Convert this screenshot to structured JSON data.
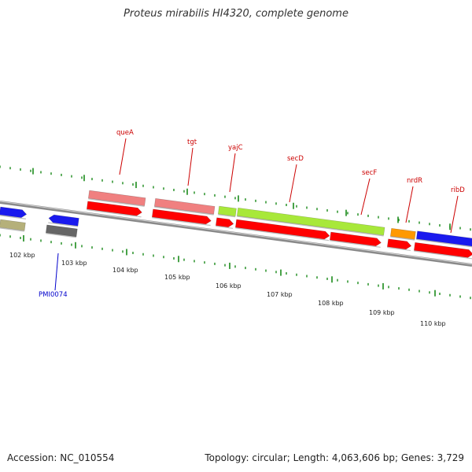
{
  "title": "Proteus mirabilis HI4320, complete genome",
  "footer": {
    "accession": "Accession: NC_010554",
    "info": "Topology: circular; Length: 4,063,606 bp; Genes: 3,729"
  },
  "colors": {
    "backbone": "#8a8a8a",
    "tick": "#1a8a1a",
    "label_red": "#cc0000",
    "label_blue": "#0000cc",
    "cds": "#ff0000",
    "pink": "#f08080",
    "lime": "#a8e83a",
    "orange": "#ff9900",
    "blue": "#1a1aee",
    "khaki": "#b5b07a",
    "gray": "#666666"
  },
  "scale_labels": [
    "102 kbp",
    "103 kbp",
    "104 kbp",
    "105 kbp",
    "106 kbp",
    "107 kbp",
    "108 kbp",
    "109 kbp",
    "110 kbp"
  ],
  "gene_labels": [
    {
      "id": "queA",
      "text": "queA",
      "color": "label_red"
    },
    {
      "id": "tgt",
      "text": "tgt",
      "color": "label_red"
    },
    {
      "id": "yajC",
      "text": "yajC",
      "color": "label_red"
    },
    {
      "id": "secD",
      "text": "secD",
      "color": "label_red"
    },
    {
      "id": "secF",
      "text": "secF",
      "color": "label_red"
    },
    {
      "id": "nrdR",
      "text": "nrdR",
      "color": "label_red"
    },
    {
      "id": "ribD",
      "text": "ribD",
      "color": "label_red"
    },
    {
      "id": "PMI0074",
      "text": "PMI0074",
      "color": "label_blue"
    }
  ]
}
